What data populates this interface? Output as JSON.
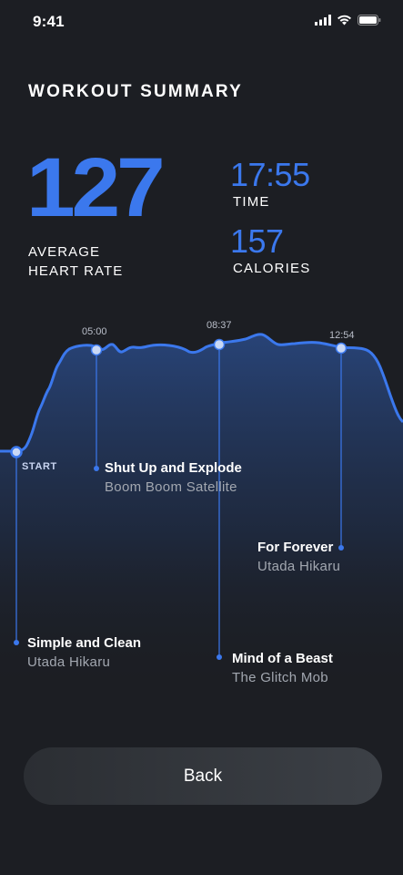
{
  "status_bar": {
    "time": "9:41"
  },
  "title": "WORKOUT SUMMARY",
  "stats": {
    "heart_rate": {
      "value": "127",
      "label_line1": "AVERAGE",
      "label_line2": "HEART RATE"
    },
    "time": {
      "value": "17:55",
      "label": "TIME"
    },
    "calories": {
      "value": "157",
      "label": "CALORIES"
    }
  },
  "chart": {
    "ticks": [
      "05:00",
      "08:37",
      "12:54"
    ],
    "start_label": "START"
  },
  "songs": [
    {
      "title": "Simple and Clean",
      "artist": "Utada Hikaru"
    },
    {
      "title": "Shut Up and Explode",
      "artist": "Boom Boom Satellite"
    },
    {
      "title": "Mind of a Beast",
      "artist": "The Glitch Mob"
    },
    {
      "title": "For Forever",
      "artist": "Utada Hikaru"
    }
  ],
  "back_label": "Back",
  "colors": {
    "accent": "#3b78ed",
    "background": "#1c1e23"
  }
}
